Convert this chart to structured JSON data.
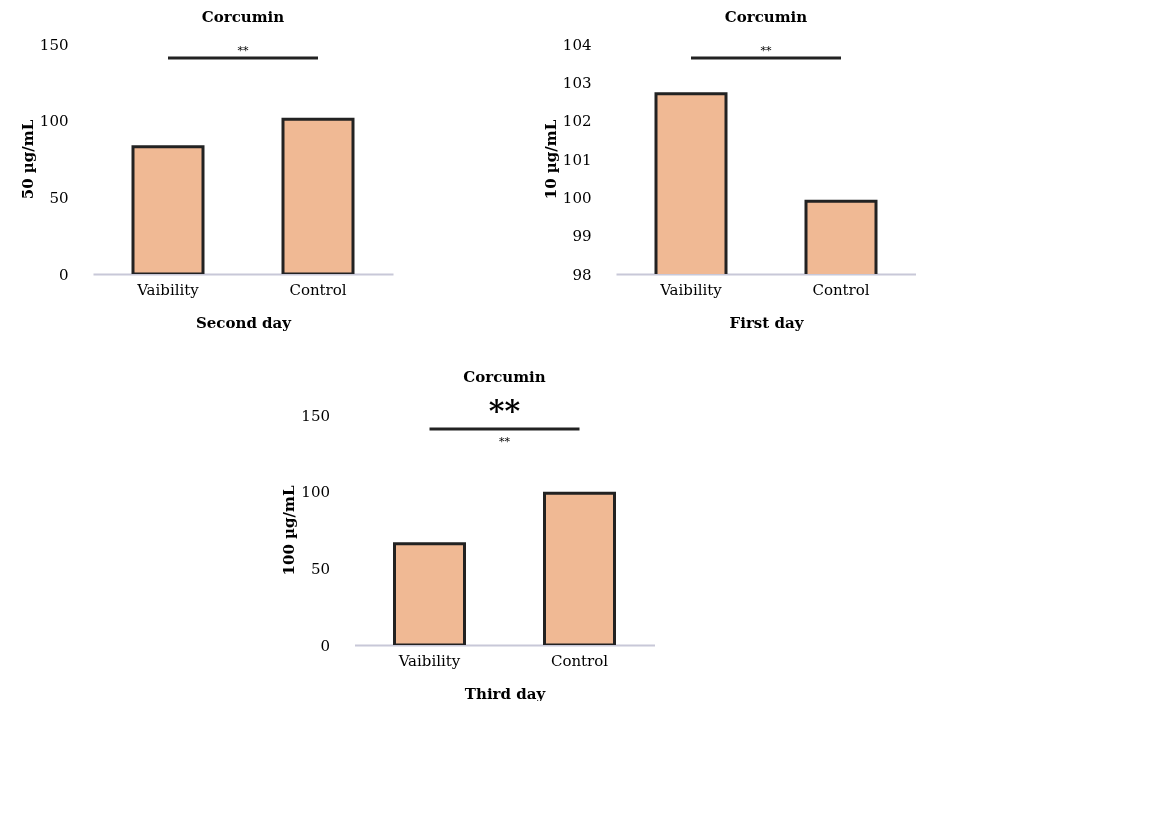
{
  "chart_data": [
    {
      "type": "bar",
      "title": "Corcumin",
      "xlabel": "Second day",
      "ylabel": "50 µg/mL",
      "categories": [
        "Vaibility",
        "Control"
      ],
      "values": [
        83,
        101
      ],
      "color": "#f0b994",
      "ylim": [
        0,
        150
      ],
      "yticks": [
        0,
        50,
        100,
        150
      ],
      "grid": false,
      "annotations": [
        "**"
      ]
    },
    {
      "type": "bar",
      "title": "Corcumin",
      "xlabel": "First day",
      "ylabel": "10 µg/mL",
      "categories": [
        "Vaibility",
        "Control"
      ],
      "values": [
        102.7,
        99.9
      ],
      "color": "#f0b994",
      "ylim": [
        98,
        104
      ],
      "yticks": [
        98,
        99,
        100,
        101,
        102,
        103,
        104
      ],
      "grid": false,
      "annotations": [
        "**"
      ]
    },
    {
      "type": "bar",
      "title": "Corcumin",
      "xlabel": "Third day",
      "ylabel": "100 µg/mL",
      "categories": [
        "Vaibility",
        "Control"
      ],
      "values": [
        66,
        99
      ],
      "color": "#f0b994",
      "ylim": [
        0,
        150
      ],
      "yticks": [
        0,
        50,
        100,
        150
      ],
      "grid": false,
      "annotations": [
        "**",
        "**"
      ]
    }
  ]
}
